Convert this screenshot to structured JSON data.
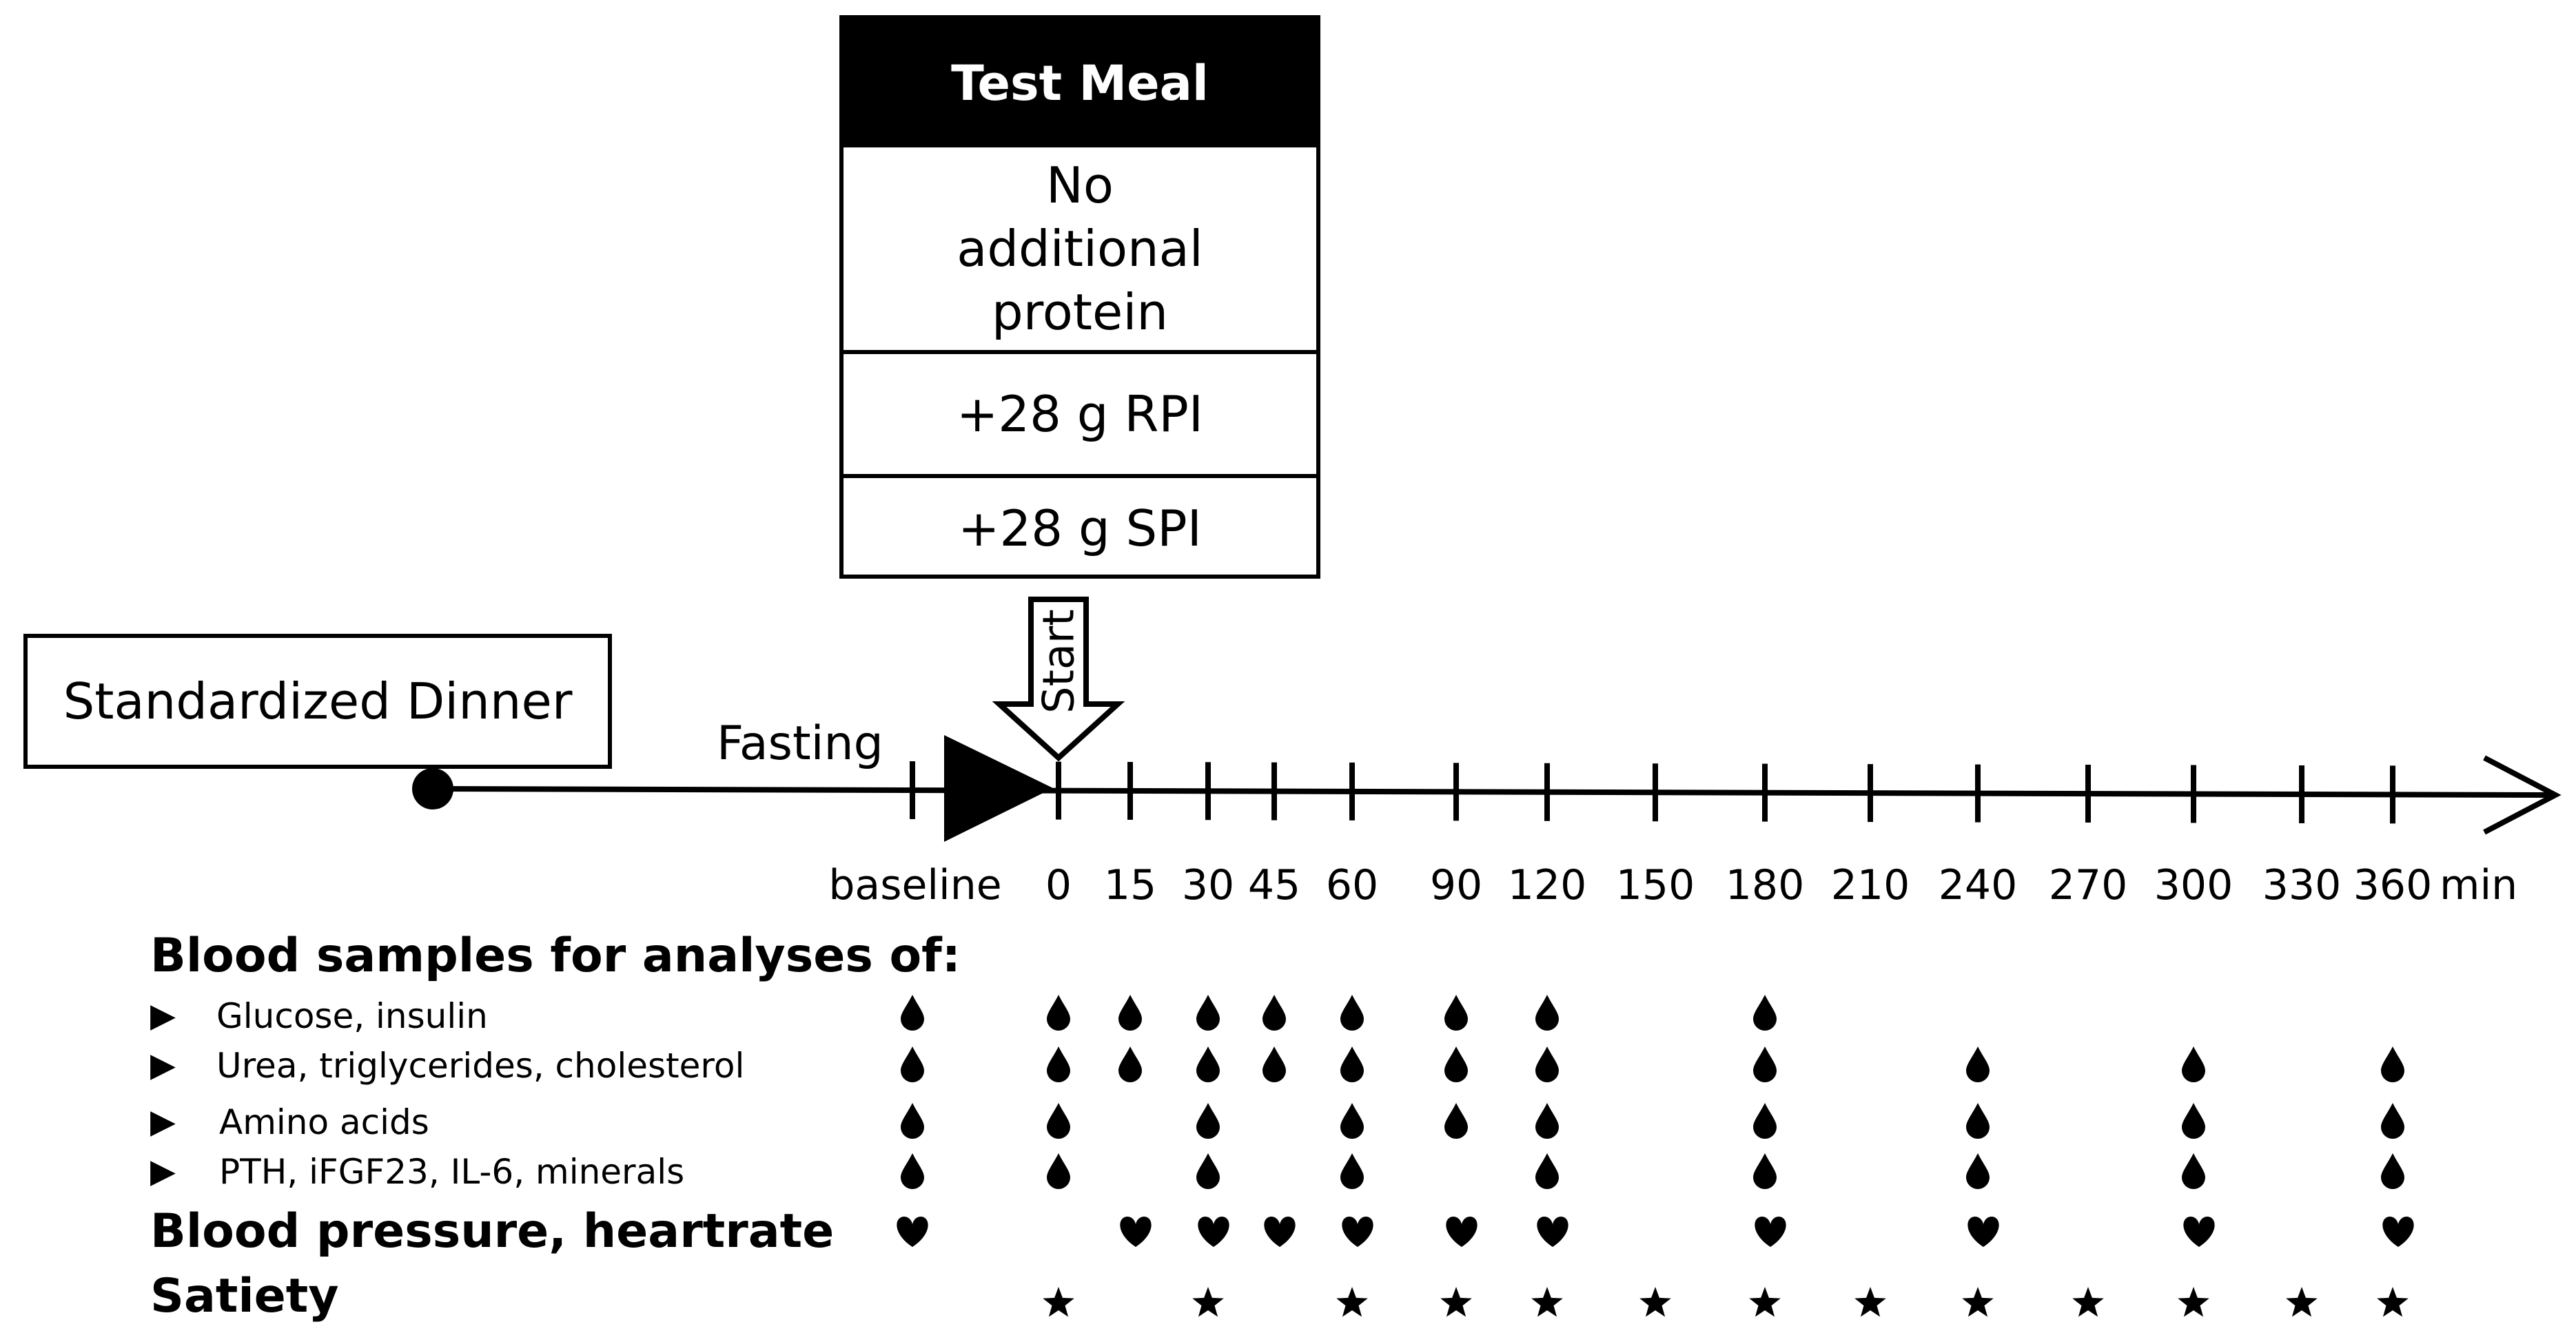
{
  "test_meal": {
    "title": "Test Meal",
    "options": [
      "No additional protein",
      "+28 g RPI",
      "+28 g SPI"
    ]
  },
  "dinner_label": "Standardized Dinner",
  "start_label": "Start",
  "fasting_label": "Fasting",
  "timeline": {
    "baseline_label": "baseline",
    "unit": "min",
    "times": [
      "0",
      "15",
      "30",
      "45",
      "60",
      "90",
      "120",
      "150",
      "180",
      "210",
      "240",
      "270",
      "300",
      "330",
      "360"
    ]
  },
  "blood_samples_title": "Blood  samples for analyses of:",
  "analyses": [
    {
      "label": "Glucose,  insulin",
      "times": [
        "baseline",
        "0",
        "15",
        "30",
        "45",
        "60",
        "90",
        "120",
        "180"
      ]
    },
    {
      "label": "Urea, triglycerides, cholesterol",
      "times": [
        "baseline",
        "0",
        "15",
        "30",
        "45",
        "60",
        "90",
        "120",
        "180",
        "240",
        "300",
        "360"
      ]
    },
    {
      "label": "Amino  acids",
      "times": [
        "baseline",
        "0",
        "30",
        "60",
        "90",
        "120",
        "180",
        "240",
        "300",
        "360"
      ]
    },
    {
      "label": "PTH,  iFGF23, IL-6, minerals",
      "times": [
        "baseline",
        "0",
        "30",
        "60",
        "120",
        "180",
        "240",
        "300",
        "360"
      ]
    }
  ],
  "bp_label": "Blood  pressure, heartrate",
  "bp_times": [
    "baseline",
    "15",
    "30",
    "45",
    "60",
    "90",
    "120",
    "180",
    "240",
    "300",
    "360"
  ],
  "satiety_label": "Satiety",
  "satiety_times": [
    "0",
    "30",
    "60",
    "90",
    "120",
    "150",
    "180",
    "210",
    "240",
    "270",
    "300",
    "330",
    "360"
  ],
  "icons": {
    "sample": "blood-drop-icon",
    "bp": "heart-icon",
    "satiety": "star-icon",
    "row_marker": "triangle-right-icon"
  }
}
